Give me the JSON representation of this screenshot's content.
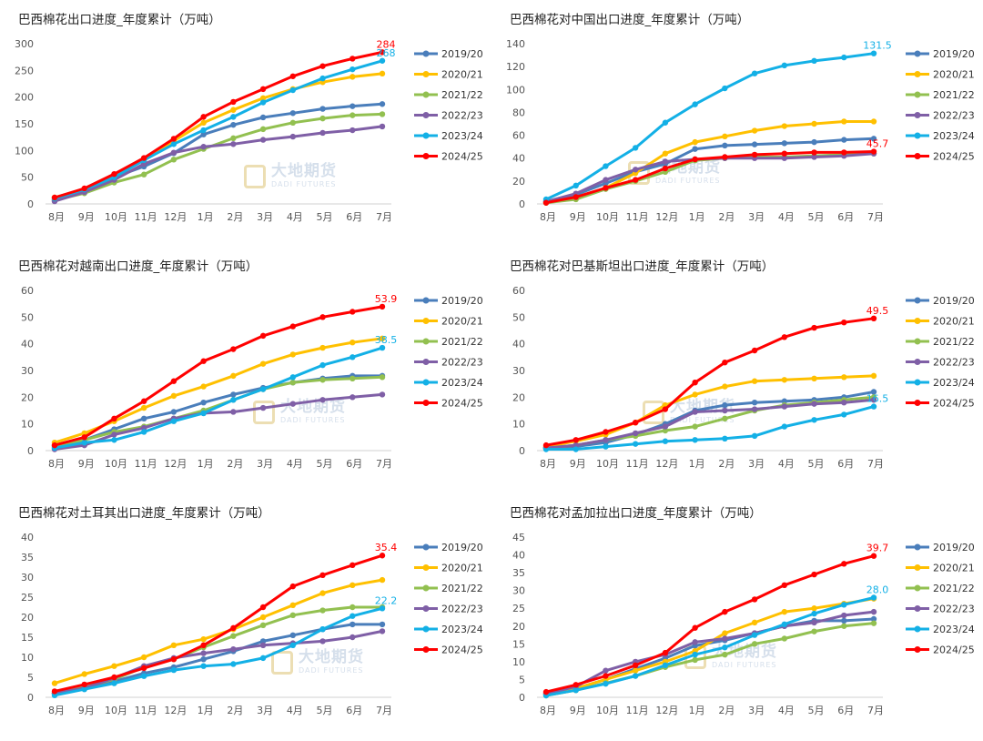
{
  "watermark": {
    "cn": "大地期货",
    "en": "DADI FUTURES"
  },
  "months": [
    "8月",
    "9月",
    "10月",
    "11月",
    "12月",
    "1月",
    "2月",
    "3月",
    "4月",
    "5月",
    "6月",
    "7月"
  ],
  "series_names": [
    "2019/20",
    "2020/21",
    "2021/22",
    "2022/23",
    "2023/24",
    "2024/25"
  ],
  "series_colors": [
    "#4a7ebb",
    "#ffc000",
    "#92c050",
    "#7f5fa6",
    "#13b0e6",
    "#ff0000"
  ],
  "chart_data": [
    {
      "type": "line",
      "title": "巴西棉花出口进度_年度累计（万吨）",
      "ylim": [
        0,
        300
      ],
      "ystep": 50,
      "categories": [
        "8月",
        "9月",
        "10月",
        "11月",
        "12月",
        "1月",
        "2月",
        "3月",
        "4月",
        "5月",
        "6月",
        "7月"
      ],
      "series": [
        {
          "name": "2019/20",
          "values": [
            8,
            25,
            50,
            70,
            95,
            130,
            148,
            162,
            170,
            178,
            183,
            187
          ]
        },
        {
          "name": "2020/21",
          "values": [
            12,
            27,
            52,
            83,
            118,
            152,
            176,
            198,
            215,
            228,
            238,
            244
          ]
        },
        {
          "name": "2021/22",
          "values": [
            7,
            20,
            40,
            55,
            83,
            103,
            123,
            140,
            152,
            160,
            166,
            168
          ]
        },
        {
          "name": "2022/23",
          "values": [
            5,
            22,
            45,
            75,
            96,
            107,
            112,
            120,
            126,
            133,
            138,
            145
          ]
        },
        {
          "name": "2023/24",
          "values": [
            10,
            27,
            50,
            82,
            112,
            138,
            163,
            190,
            213,
            235,
            252,
            268
          ]
        },
        {
          "name": "2024/25",
          "values": [
            12,
            29,
            56,
            86,
            122,
            163,
            191,
            215,
            239,
            258,
            272,
            284
          ]
        }
      ],
      "end_labels": [
        {
          "series": "2024/25",
          "text": "284"
        },
        {
          "series": "2023/24",
          "text": "268"
        }
      ]
    },
    {
      "type": "line",
      "title": "巴西棉花对中国出口进度_年度累计（万吨）",
      "ylim": [
        0,
        140
      ],
      "ystep": 20,
      "categories": [
        "8月",
        "9月",
        "10月",
        "11月",
        "12月",
        "1月",
        "2月",
        "3月",
        "4月",
        "5月",
        "6月",
        "7月"
      ],
      "series": [
        {
          "name": "2019/20",
          "values": [
            2,
            8,
            18,
            28,
            35,
            48,
            51,
            52,
            53,
            54,
            56,
            57
          ]
        },
        {
          "name": "2020/21",
          "values": [
            1,
            5,
            14,
            27,
            44,
            54,
            59,
            64,
            68,
            70,
            72,
            72
          ]
        },
        {
          "name": "2021/22",
          "values": [
            1,
            4,
            13,
            20,
            28,
            38,
            40,
            41,
            41,
            42,
            43,
            44
          ]
        },
        {
          "name": "2022/23",
          "values": [
            2,
            9,
            21,
            30,
            37,
            39,
            40,
            40,
            40,
            41,
            42,
            44
          ]
        },
        {
          "name": "2023/24",
          "values": [
            4,
            16,
            33,
            49,
            71,
            87,
            101,
            114,
            121,
            125,
            128,
            131.5
          ]
        },
        {
          "name": "2024/25",
          "values": [
            1,
            6,
            14,
            21,
            31,
            39,
            41,
            43,
            44,
            45,
            45,
            45.7
          ]
        }
      ],
      "end_labels": [
        {
          "series": "2023/24",
          "text": "131.5"
        },
        {
          "series": "2024/25",
          "text": "45.7"
        }
      ]
    },
    {
      "type": "line",
      "title": "巴西棉花对越南出口进度_年度累计（万吨）",
      "ylim": [
        0,
        60
      ],
      "ystep": 10,
      "categories": [
        "8月",
        "9月",
        "10月",
        "11月",
        "12月",
        "1月",
        "2月",
        "3月",
        "4月",
        "5月",
        "6月",
        "7月"
      ],
      "series": [
        {
          "name": "2019/20",
          "values": [
            2,
            4,
            8,
            12,
            14.5,
            18,
            21,
            23.5,
            25.5,
            27,
            28,
            28
          ]
        },
        {
          "name": "2020/21",
          "values": [
            3,
            6.5,
            11,
            16,
            20.5,
            24,
            28,
            32.5,
            36,
            38.5,
            40.5,
            42
          ]
        },
        {
          "name": "2021/22",
          "values": [
            1.5,
            4,
            7,
            9,
            12,
            15,
            19,
            23,
            25.5,
            26.5,
            27,
            27.5
          ]
        },
        {
          "name": "2022/23",
          "values": [
            0.5,
            2,
            6,
            8.5,
            12,
            14,
            14.5,
            16,
            17.5,
            19,
            20,
            21
          ]
        },
        {
          "name": "2023/24",
          "values": [
            1,
            3,
            4,
            7,
            11,
            14,
            19,
            23,
            27.5,
            32,
            35,
            38.5
          ]
        },
        {
          "name": "2024/25",
          "values": [
            2,
            5,
            12,
            18.5,
            26,
            33.5,
            38,
            43,
            46.5,
            50,
            52,
            53.9
          ]
        }
      ],
      "end_labels": [
        {
          "series": "2024/25",
          "text": "53.9"
        },
        {
          "series": "2023/24",
          "text": "38.5"
        }
      ]
    },
    {
      "type": "line",
      "title": "巴西棉花对巴基斯坦出口进度_年度累计（万吨）",
      "ylim": [
        0,
        60
      ],
      "ystep": 10,
      "categories": [
        "8月",
        "9月",
        "10月",
        "11月",
        "12月",
        "1月",
        "2月",
        "3月",
        "4月",
        "5月",
        "6月",
        "7月"
      ],
      "series": [
        {
          "name": "2019/20",
          "values": [
            1,
            1.5,
            3,
            6,
            10,
            15,
            17,
            18,
            18.5,
            19,
            20,
            22
          ]
        },
        {
          "name": "2020/21",
          "values": [
            1.5,
            3.5,
            6,
            10.5,
            17,
            21,
            24,
            26,
            26.5,
            27,
            27.5,
            28
          ]
        },
        {
          "name": "2021/22",
          "values": [
            1,
            2,
            4,
            5.5,
            7.5,
            9,
            12,
            15,
            17,
            18,
            19,
            20
          ]
        },
        {
          "name": "2022/23",
          "values": [
            1,
            2,
            4,
            6.5,
            9,
            14.5,
            15,
            15.5,
            16.5,
            17.5,
            18,
            19
          ]
        },
        {
          "name": "2023/24",
          "values": [
            0.5,
            0.5,
            1.5,
            2.5,
            3.5,
            4,
            4.5,
            5.5,
            9,
            11.5,
            13.5,
            16.5
          ]
        },
        {
          "name": "2024/25",
          "values": [
            2,
            4,
            7,
            10.5,
            15.5,
            25.5,
            33,
            37.5,
            42.5,
            46,
            48,
            49.5
          ]
        }
      ],
      "end_labels": [
        {
          "series": "2024/25",
          "text": "49.5"
        },
        {
          "series": "2023/24",
          "text": "16.5"
        }
      ]
    },
    {
      "type": "line",
      "title": "巴西棉花对土耳其出口进度_年度累计（万吨）",
      "ylim": [
        0,
        40
      ],
      "ystep": 5,
      "categories": [
        "8月",
        "9月",
        "10月",
        "11月",
        "12月",
        "1月",
        "2月",
        "3月",
        "4月",
        "5月",
        "6月",
        "7月"
      ],
      "series": [
        {
          "name": "2019/20",
          "values": [
            1,
            2.5,
            4,
            6,
            7.5,
            9.5,
            11.5,
            14,
            15.5,
            17,
            18.2,
            18.2
          ]
        },
        {
          "name": "2020/21",
          "values": [
            3.5,
            5.8,
            7.8,
            10,
            13,
            14.5,
            17,
            20,
            23,
            26,
            28,
            29.3
          ]
        },
        {
          "name": "2021/22",
          "values": [
            1,
            2.5,
            4.5,
            7.5,
            9.5,
            12.5,
            15.3,
            18,
            20.5,
            21.7,
            22.5,
            22.5
          ]
        },
        {
          "name": "2022/23",
          "values": [
            1,
            2.3,
            4.8,
            7.8,
            9.8,
            11,
            12,
            13,
            13.5,
            14,
            15,
            16.5
          ]
        },
        {
          "name": "2023/24",
          "values": [
            0.5,
            2,
            3.5,
            5.3,
            6.8,
            7.8,
            8.3,
            9.8,
            13,
            17,
            20.3,
            22.2
          ]
        },
        {
          "name": "2024/25",
          "values": [
            1.5,
            3.2,
            5,
            7.3,
            9.5,
            13,
            17.3,
            22.5,
            27.7,
            30.5,
            33,
            35.4
          ]
        }
      ],
      "end_labels": [
        {
          "series": "2024/25",
          "text": "35.4"
        },
        {
          "series": "2023/24",
          "text": "22.2"
        }
      ]
    },
    {
      "type": "line",
      "title": "巴西棉花对孟加拉出口进度_年度累计（万吨）",
      "ylim": [
        0,
        45
      ],
      "ystep": 5,
      "categories": [
        "8月",
        "9月",
        "10月",
        "11月",
        "12月",
        "1月",
        "2月",
        "3月",
        "4月",
        "5月",
        "6月",
        "7月"
      ],
      "series": [
        {
          "name": "2019/20",
          "values": [
            1,
            2.5,
            5,
            8,
            11,
            14.5,
            16,
            18,
            20,
            21.5,
            21.5,
            22
          ]
        },
        {
          "name": "2020/21",
          "values": [
            1,
            2.5,
            5,
            7.5,
            10,
            13,
            18,
            21,
            24,
            25,
            26.3,
            27.7
          ]
        },
        {
          "name": "2021/22",
          "values": [
            0.5,
            2,
            4,
            6,
            8.5,
            10.5,
            12,
            15,
            16.5,
            18.5,
            20,
            20.8
          ]
        },
        {
          "name": "2022/23",
          "values": [
            1,
            3,
            7.5,
            10,
            12,
            15.5,
            16.5,
            18,
            20,
            21,
            23,
            24
          ]
        },
        {
          "name": "2023/24",
          "values": [
            0.5,
            2,
            3.8,
            6,
            9,
            12,
            14,
            17.5,
            20.5,
            23.5,
            26,
            28.0
          ]
        },
        {
          "name": "2024/25",
          "values": [
            1.5,
            3.5,
            6,
            9,
            12.5,
            19.5,
            24,
            27.5,
            31.5,
            34.5,
            37.5,
            39.7
          ]
        }
      ],
      "end_labels": [
        {
          "series": "2024/25",
          "text": "39.7"
        },
        {
          "series": "2023/24",
          "text": "28.0"
        }
      ]
    }
  ]
}
